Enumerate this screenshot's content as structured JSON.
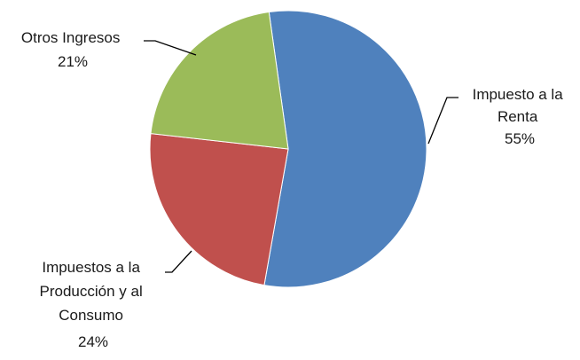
{
  "chart_data": {
    "type": "pie",
    "title": "",
    "slices": [
      {
        "label_lines": [
          "Impuesto a la",
          "Renta"
        ],
        "percent_label": "55%",
        "value": 55,
        "color": "#4f81bd"
      },
      {
        "label_lines": [
          "Impuestos a la",
          "Producción y al",
          "Consumo"
        ],
        "percent_label": "24%",
        "value": 24,
        "color": "#c0504d"
      },
      {
        "label_lines": [
          "Otros Ingresos"
        ],
        "percent_label": "21%",
        "value": 21,
        "color": "#9bbb59"
      }
    ],
    "start_angle_deg": -8,
    "direction": "clockwise",
    "legend": "none",
    "data_labels": "outside-with-leader-lines"
  }
}
